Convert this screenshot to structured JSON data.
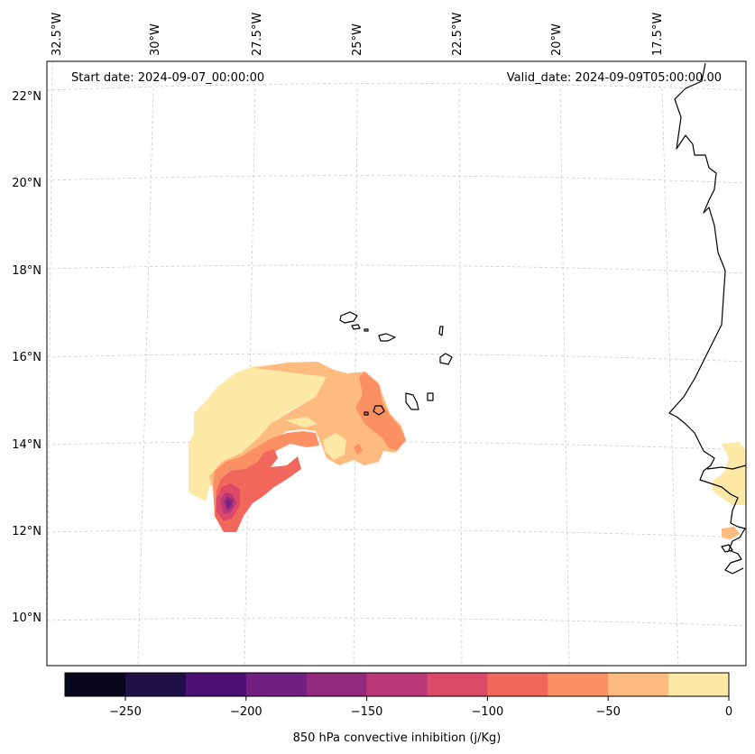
{
  "map": {
    "start_date_text": "Start date: 2024-09-07_00:00:00",
    "valid_date_text": "Valid_date: 2024-09-09T05:00:00.00",
    "lon_labels": [
      "32.5°W",
      "30°W",
      "27.5°W",
      "25°W",
      "22.5°W",
      "20°W",
      "17.5°W"
    ],
    "lat_labels": [
      "22°N",
      "20°N",
      "18°N",
      "16°N",
      "14°N",
      "12°N",
      "10°N"
    ],
    "gridlines": true
  },
  "colorbar": {
    "label": "850 hPa convective inhibition (j/Kg)",
    "tick_labels": [
      "−250",
      "−200",
      "−150",
      "−100",
      "−50",
      "0"
    ],
    "boundaries": [
      -275,
      -250,
      -225,
      -200,
      -175,
      -150,
      -125,
      -100,
      -75,
      -50,
      -25,
      0
    ],
    "colors": [
      "#08061d",
      "#1f1146",
      "#4d1175",
      "#711f81",
      "#93287f",
      "#b83878",
      "#dc4969",
      "#f2675c",
      "#fc9065",
      "#febb7f",
      "#fde8a5"
    ]
  },
  "field_colors": {
    "level_m25_0": "#fde8a5",
    "level_m50_m25": "#febb7f",
    "level_m75_m50": "#fc9065",
    "level_m100_m75": "#f2675c",
    "level_m125_m100": "#dc4969",
    "level_m150_m125": "#b83878",
    "level_m175_m150": "#93287f",
    "level_m200_m175": "#711f81"
  }
}
